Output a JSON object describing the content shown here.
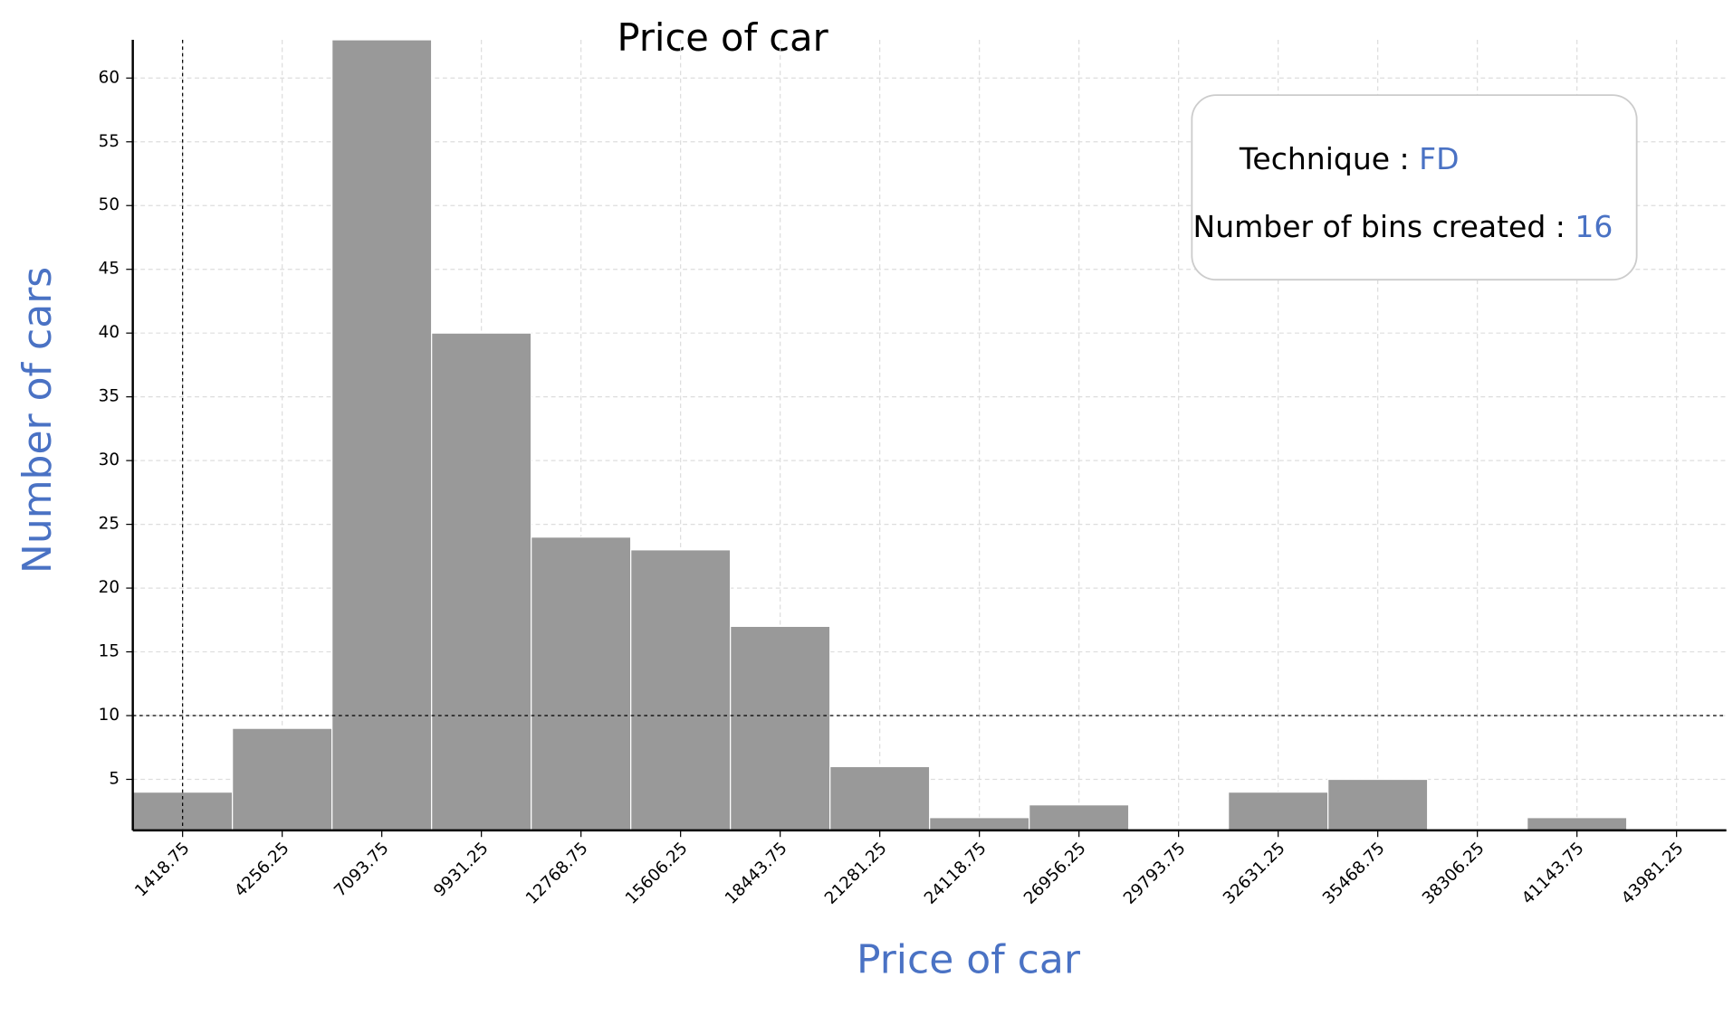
{
  "chart_data": {
    "type": "histogram",
    "title": "Price of car",
    "x_label": "Price of car",
    "y_label": "Number of cars",
    "bins": [
      0,
      2837.5,
      5675,
      8512.5,
      11350,
      14187.5,
      17025,
      19862.5,
      22700,
      25537.5,
      28375,
      31212.5,
      34050,
      36887.5,
      39725,
      42562.5,
      45400
    ],
    "values": [
      4,
      9,
      63,
      40,
      24,
      23,
      17,
      6,
      2,
      3,
      0,
      4,
      5,
      0,
      2,
      0
    ],
    "color": "#999999",
    "xlim": [
      0,
      45400
    ],
    "xticks": [
      1418.75,
      4256.25,
      7093.75,
      9931.25,
      12768.75,
      15606.25,
      18443.75,
      21281.25,
      24118.75,
      26956.25,
      29793.75,
      32631.25,
      35468.75,
      38306.25,
      41143.75,
      43981.25
    ],
    "ylim": [
      1,
      63
    ],
    "yticks": [
      5,
      10,
      15,
      20,
      25,
      30,
      35,
      40,
      45,
      50,
      55,
      60
    ],
    "grid": true,
    "reference_lines": {
      "x": 1418.75,
      "y": 10
    },
    "info_box": {
      "technique_label": "Technique :",
      "technique": "FD",
      "bins_label": "Number of bins created :",
      "bins_created": 16
    }
  }
}
